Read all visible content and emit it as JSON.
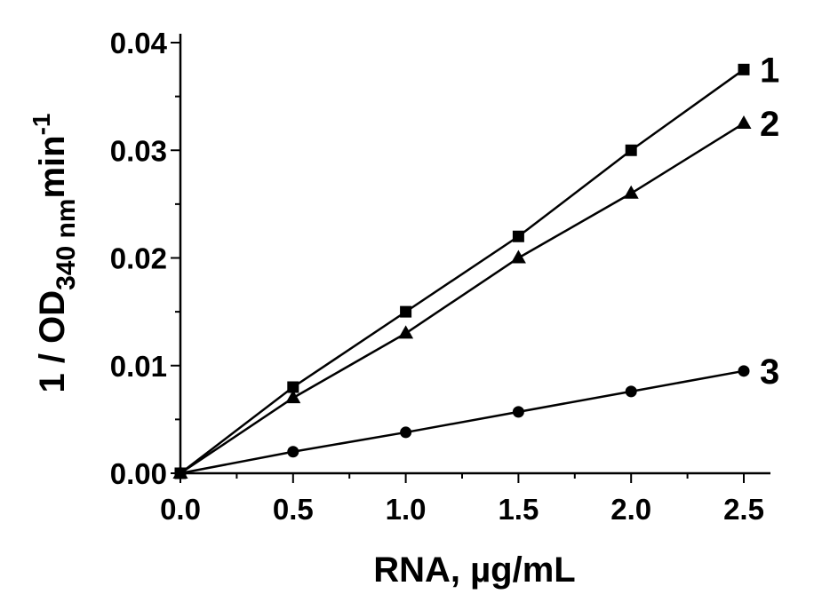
{
  "chart_data": {
    "type": "line",
    "xlabel": "RNA, µg/mL",
    "ylabel": {
      "prefix": "1 / OD",
      "subscript": "340 nm",
      "unit": "min",
      "superscript": "-1"
    },
    "xlim": [
      0,
      2.5
    ],
    "ylim": [
      0,
      0.04
    ],
    "xticks": [
      "0.0",
      "0.5",
      "1.0",
      "1.5",
      "2.0",
      "2.5"
    ],
    "yticks": [
      "0.00",
      "0.01",
      "0.02",
      "0.03",
      "0.04"
    ],
    "grid": false,
    "x": [
      0,
      0.5,
      1.0,
      1.5,
      2.0,
      2.5
    ],
    "series": [
      {
        "name": "1",
        "marker": "square",
        "color": "#000000",
        "values": [
          0,
          0.008,
          0.015,
          0.022,
          0.03,
          0.0375
        ]
      },
      {
        "name": "2",
        "marker": "triangle",
        "color": "#000000",
        "values": [
          0,
          0.007,
          0.013,
          0.02,
          0.026,
          0.0325
        ]
      },
      {
        "name": "3",
        "marker": "circle",
        "color": "#000000",
        "values": [
          0,
          0.002,
          0.0038,
          0.0057,
          0.0076,
          0.0095
        ]
      }
    ]
  }
}
